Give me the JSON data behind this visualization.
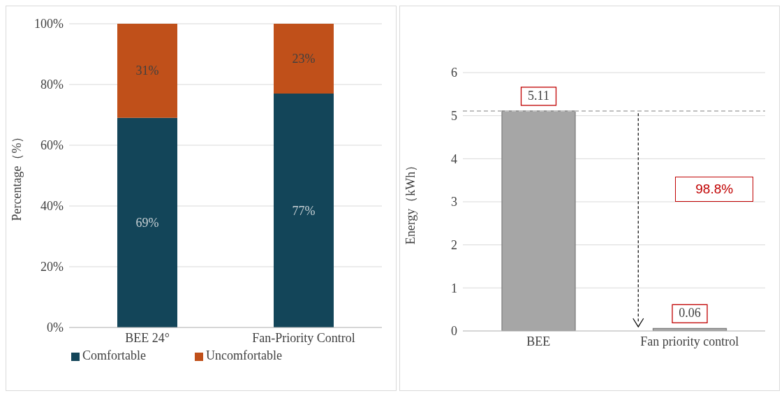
{
  "chart_data": [
    {
      "type": "bar",
      "stacked": true,
      "categories": [
        "BEE 24°",
        "Fan-Priority Control"
      ],
      "series": [
        {
          "name": "Comfortable",
          "color": "#134559",
          "values": [
            69,
            77
          ],
          "value_labels": [
            "69%",
            "77%"
          ]
        },
        {
          "name": "Uncomfortable",
          "color": "#c0501a",
          "values": [
            31,
            23
          ],
          "value_labels": [
            "31%",
            "23%"
          ]
        }
      ],
      "ylabel": "Percentage（%）",
      "ylim": [
        0,
        100
      ],
      "yticks": [
        {
          "value": 0,
          "label": "0%"
        },
        {
          "value": 20,
          "label": "20%"
        },
        {
          "value": 40,
          "label": "40%"
        },
        {
          "value": 60,
          "label": "60%"
        },
        {
          "value": 80,
          "label": "80%"
        },
        {
          "value": 100,
          "label": "100%"
        }
      ],
      "grid": "y",
      "legend": "bottom"
    },
    {
      "type": "bar",
      "categories": [
        "BEE",
        "Fan priority control"
      ],
      "values": [
        5.11,
        0.06
      ],
      "color": "#a6a6a6",
      "data_labels": true,
      "ylabel": "Energy（kWh）",
      "ylim": [
        0,
        6
      ],
      "yticks": [
        0,
        1,
        2,
        3,
        4,
        5,
        6
      ],
      "grid": "y",
      "ref_lines": [
        {
          "axis": "y",
          "value": 5.11,
          "color": "#bfbfbf",
          "line_style": "dashed"
        }
      ],
      "annotations": [
        "98.8%"
      ]
    }
  ]
}
